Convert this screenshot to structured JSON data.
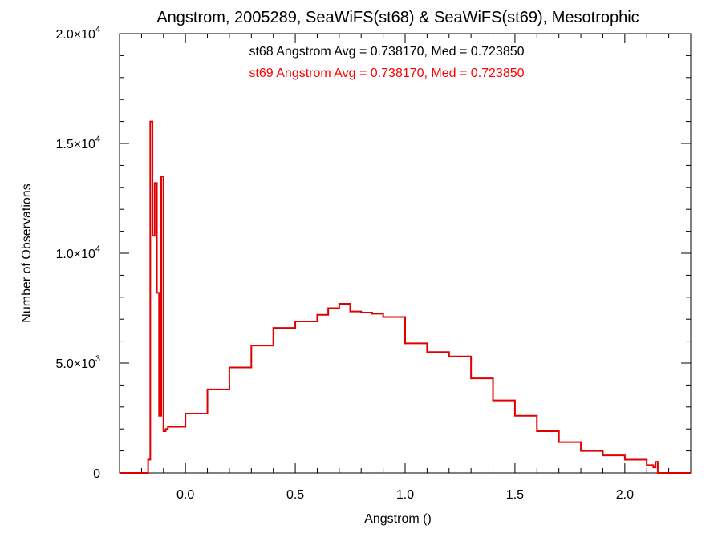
{
  "chart_data": {
    "type": "histogram-step",
    "title": "Angstrom, 2005289, SeaWiFS(st68) & SeaWiFS(st69), Mesotrophic",
    "xlabel": "Angstrom ()",
    "ylabel": "Number of Observations",
    "xlim": [
      -0.3,
      2.3
    ],
    "ylim": [
      0,
      20000
    ],
    "x_ticks": [
      0.0,
      0.5,
      1.0,
      1.5,
      2.0
    ],
    "x_tick_labels": [
      "0.0",
      "0.5",
      "1.0",
      "1.5",
      "2.0"
    ],
    "y_ticks": [
      0,
      5000,
      10000,
      15000,
      20000
    ],
    "y_tick_labels": [
      {
        "mantissa": "0",
        "exp": ""
      },
      {
        "mantissa": "5.0×10",
        "exp": "3"
      },
      {
        "mantissa": "1.0×10",
        "exp": "4"
      },
      {
        "mantissa": "1.5×10",
        "exp": "4"
      },
      {
        "mantissa": "2.0×10",
        "exp": "4"
      }
    ],
    "annotations": [
      {
        "text": "st68 Angstrom Avg = 0.738170, Med = 0.723850",
        "color": "#000000"
      },
      {
        "text": "st69 Angstrom Avg = 0.738170, Med = 0.723850",
        "color": "#ff0000"
      }
    ],
    "series": [
      {
        "color": "#e00000",
        "x": [
          -0.3,
          -0.17,
          -0.16,
          -0.15,
          -0.14,
          -0.13,
          -0.12,
          -0.11,
          -0.1,
          -0.09,
          -0.08,
          0.0,
          0.1,
          0.2,
          0.3,
          0.4,
          0.5,
          0.6,
          0.65,
          0.7,
          0.75,
          0.8,
          0.85,
          0.9,
          1.0,
          1.1,
          1.2,
          1.3,
          1.4,
          1.5,
          1.6,
          1.7,
          1.8,
          1.9,
          2.0,
          2.1,
          2.13,
          2.14,
          2.15,
          2.3
        ],
        "y": [
          0,
          600,
          16000,
          10800,
          13200,
          8200,
          2600,
          13500,
          1900,
          2000,
          2100,
          2700,
          3800,
          4800,
          5800,
          6600,
          6900,
          7200,
          7500,
          7700,
          7350,
          7300,
          7250,
          7100,
          5900,
          5500,
          5300,
          4300,
          3300,
          2600,
          1900,
          1400,
          1000,
          800,
          600,
          350,
          250,
          500,
          0,
          0
        ]
      }
    ]
  }
}
